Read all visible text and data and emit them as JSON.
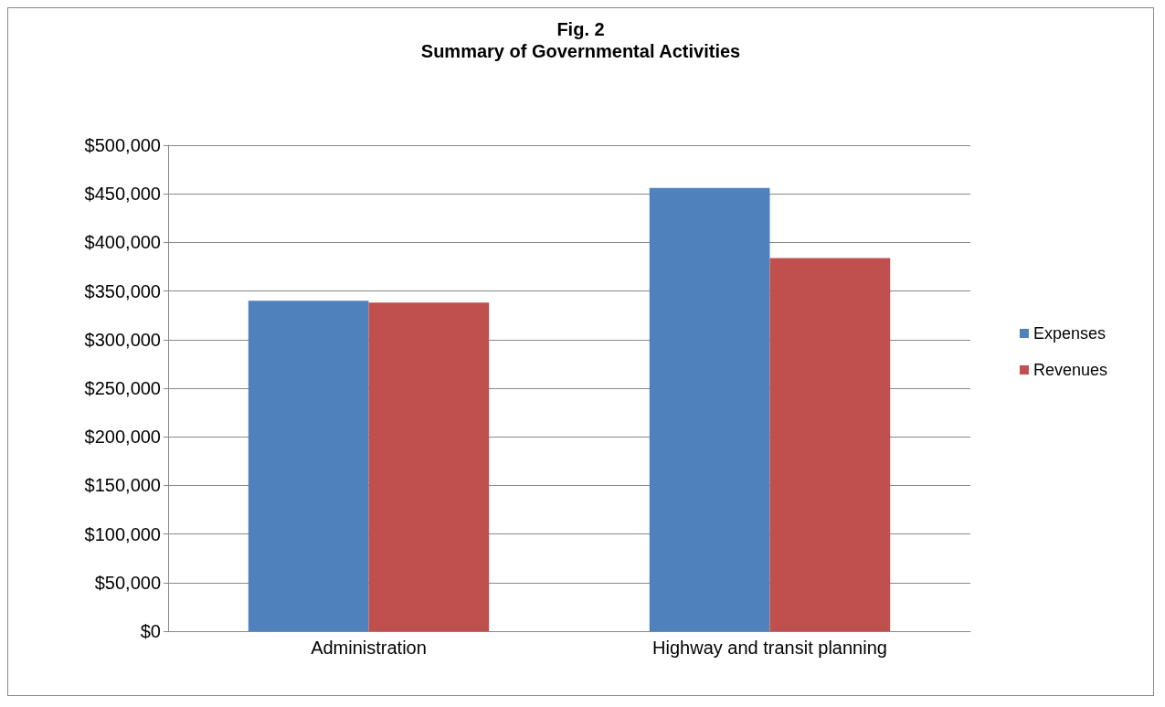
{
  "chart_data": {
    "type": "bar",
    "title": "Fig. 2",
    "subtitle": "Summary of Governmental Activities",
    "categories": [
      "Administration",
      "Highway and transit planning"
    ],
    "series": [
      {
        "name": "Expenses",
        "color": "#4f81bd",
        "values": [
          340000,
          456000
        ]
      },
      {
        "name": "Revenues",
        "color": "#c0504d",
        "values": [
          338000,
          384000
        ]
      }
    ],
    "ylim": [
      0,
      500000
    ],
    "yticks": [
      {
        "value": 0,
        "label": "$0"
      },
      {
        "value": 50000,
        "label": "$50,000"
      },
      {
        "value": 100000,
        "label": "$100,000"
      },
      {
        "value": 150000,
        "label": "$150,000"
      },
      {
        "value": 200000,
        "label": "$200,000"
      },
      {
        "value": 250000,
        "label": "$250,000"
      },
      {
        "value": 300000,
        "label": "$300,000"
      },
      {
        "value": 350000,
        "label": "$350,000"
      },
      {
        "value": 400000,
        "label": "$400,000"
      },
      {
        "value": 450000,
        "label": "$450,000"
      },
      {
        "value": 500000,
        "label": "$500,000"
      }
    ],
    "grid": "y",
    "legend": "right"
  }
}
